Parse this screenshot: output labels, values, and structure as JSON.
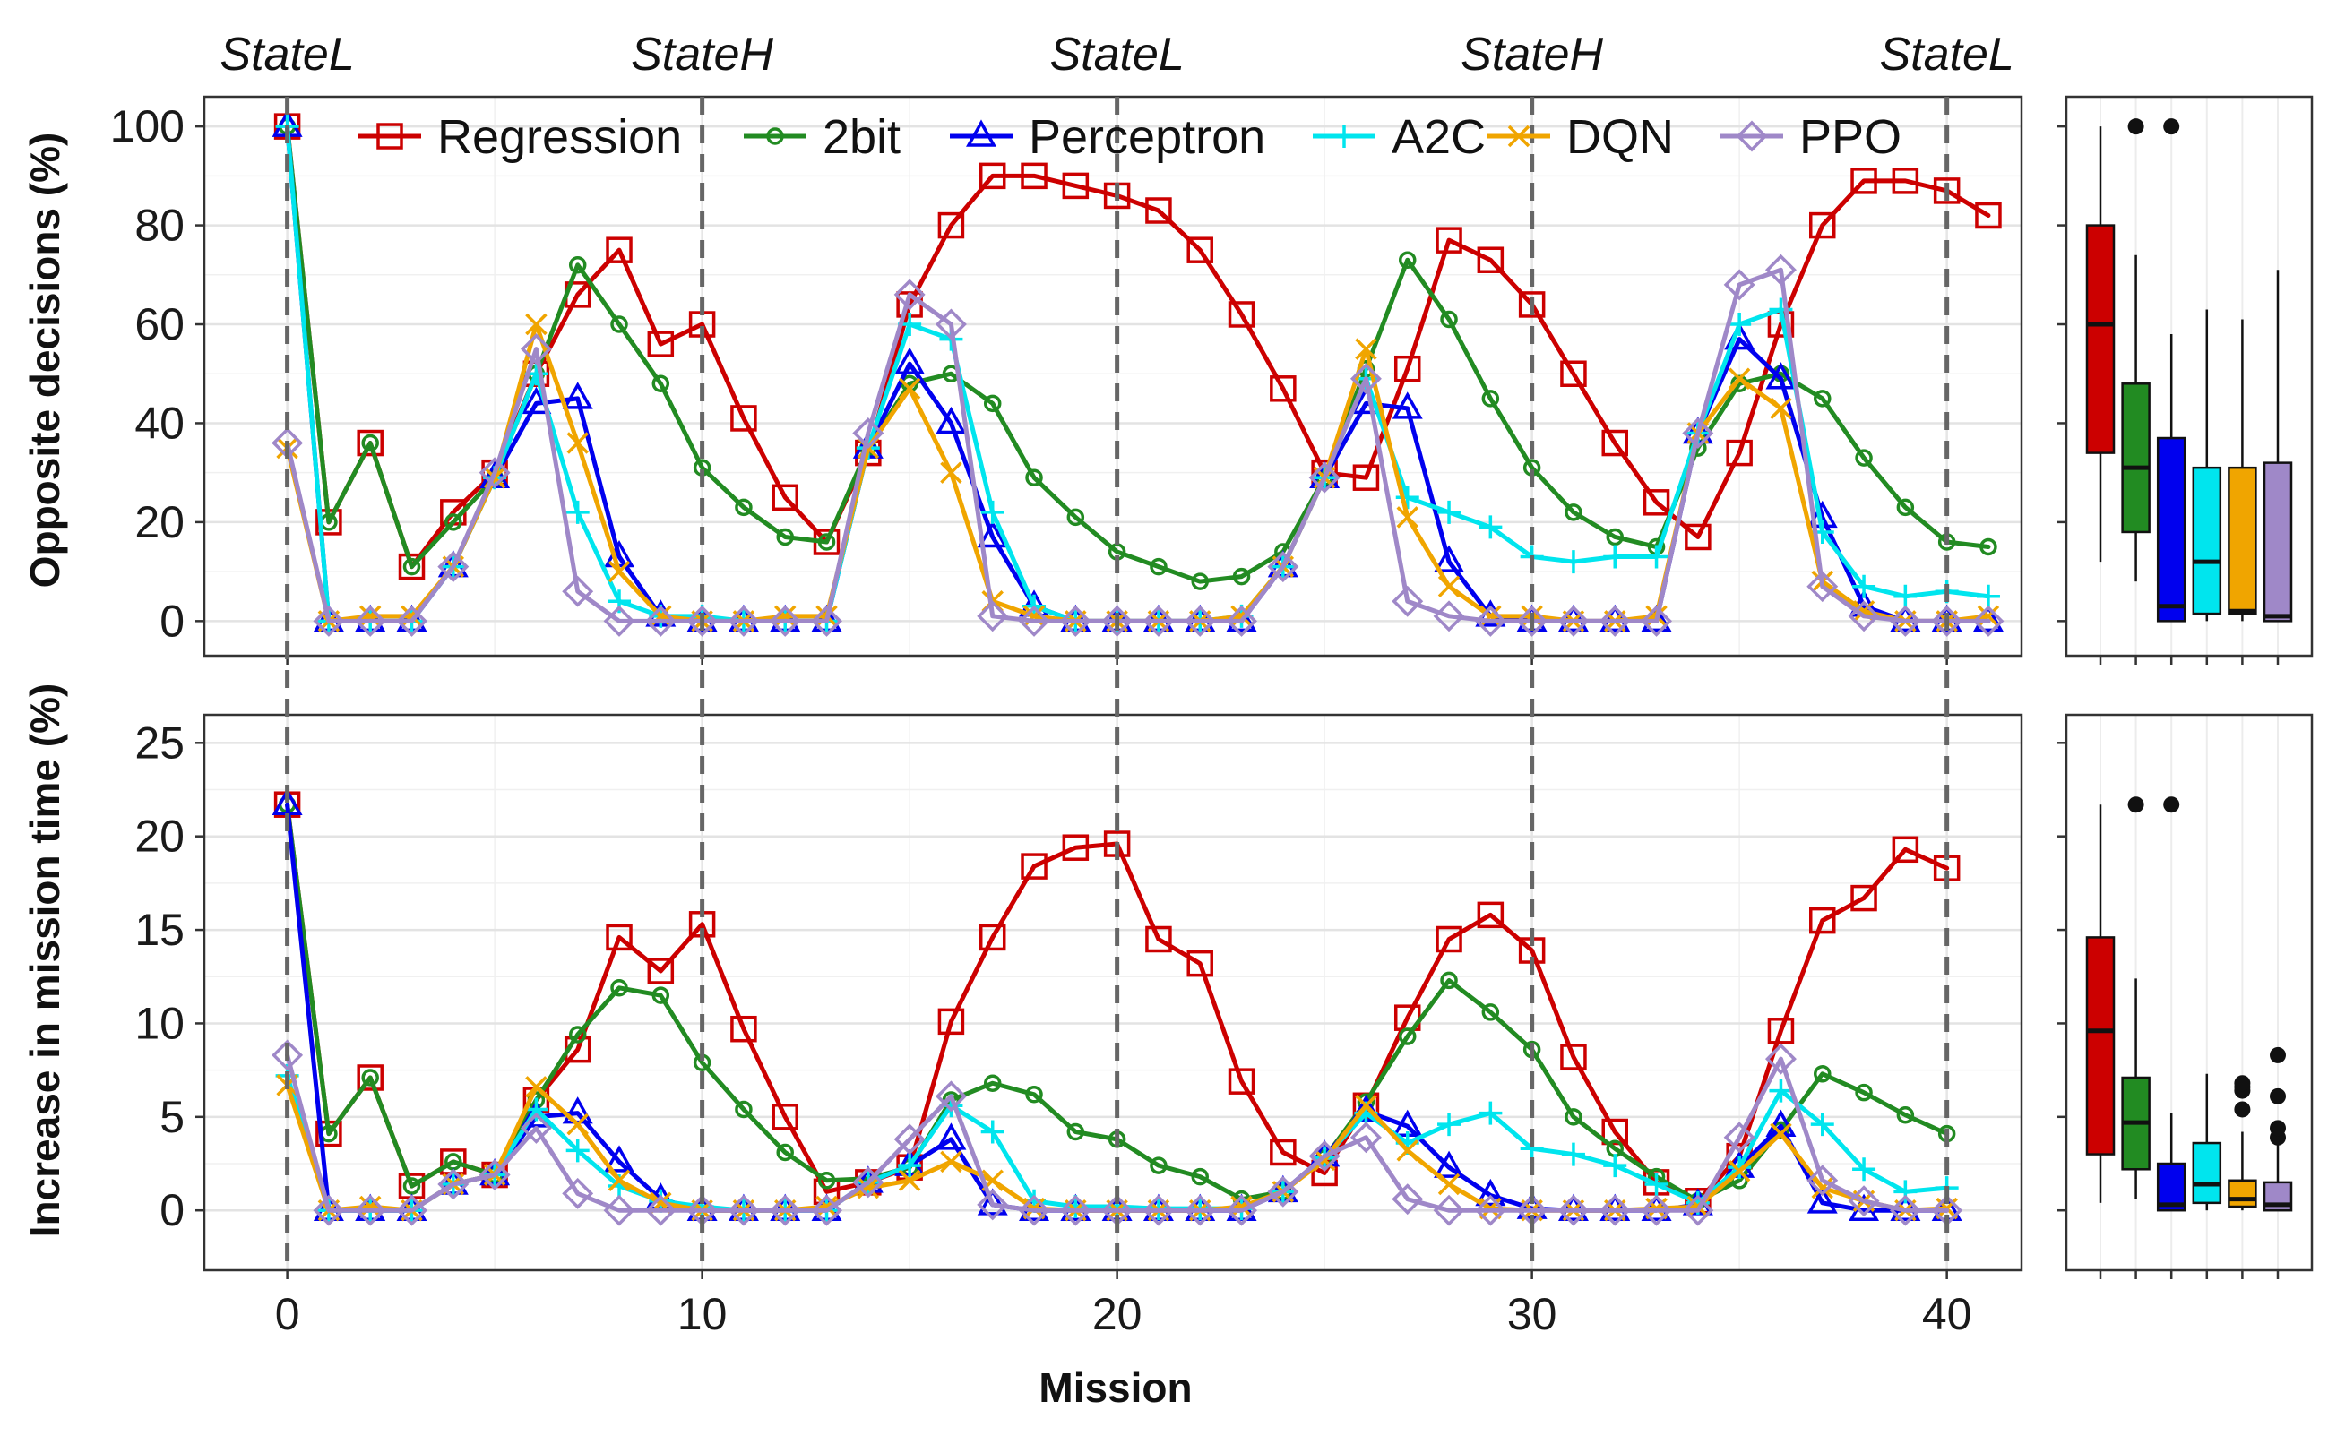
{
  "colors": {
    "Regression": "#cc0000",
    "2bit": "#228b22",
    "Perceptron": "#0000ee",
    "A2C": "#00e5ee",
    "DQN": "#f0a500",
    "PPO": "#9f88c8",
    "vline": "#666666"
  },
  "markers": {
    "Regression": "square-open",
    "2bit": "circle-open",
    "Perceptron": "triangle-open",
    "A2C": "plus",
    "DQN": "cross",
    "PPO": "diamond-open"
  },
  "chart_data": [
    {
      "type": "line",
      "id": "top",
      "xlabel": "",
      "ylabel": "Opposite decisions (%)",
      "xlim": [
        -2,
        41.8
      ],
      "ylim": [
        -7,
        106
      ],
      "yticks": [
        0,
        20,
        40,
        60,
        80,
        100
      ],
      "grid": true,
      "legend_position": "top",
      "state_lines": [
        0,
        10,
        20,
        30,
        40
      ],
      "state_labels": [
        {
          "x": 0,
          "label": "StateL"
        },
        {
          "x": 10,
          "label": "StateH"
        },
        {
          "x": 20,
          "label": "StateL"
        },
        {
          "x": 30,
          "label": "StateH"
        },
        {
          "x": 40,
          "label": "StateL"
        }
      ],
      "series": [
        {
          "name": "Regression",
          "values": [
            100,
            20,
            36,
            11,
            22,
            30,
            50,
            66,
            75,
            56,
            60,
            41,
            25,
            16,
            34,
            64,
            80,
            90,
            90,
            88,
            86,
            83,
            75,
            62,
            47,
            30,
            29,
            51,
            77,
            73,
            64,
            50,
            36,
            24,
            17,
            34,
            60,
            80,
            89,
            89,
            87,
            82
          ]
        },
        {
          "name": "2bit",
          "values": [
            100,
            20,
            36,
            11,
            20,
            29,
            50,
            72,
            60,
            48,
            31,
            23,
            17,
            16,
            35,
            48,
            50,
            44,
            29,
            21,
            14,
            11,
            8,
            9,
            14,
            29,
            51,
            73,
            61,
            45,
            31,
            22,
            17,
            15,
            35,
            48,
            50,
            45,
            33,
            23,
            16,
            15
          ]
        },
        {
          "name": "Perceptron",
          "values": [
            100,
            0,
            0,
            0,
            11,
            29,
            44,
            45,
            13,
            1,
            0,
            0,
            0,
            0,
            35,
            52,
            40,
            17,
            3,
            0,
            0,
            0,
            0,
            0,
            11,
            29,
            44,
            43,
            12,
            1,
            0,
            0,
            0,
            0,
            38,
            57,
            49,
            21,
            3,
            0,
            0,
            0
          ]
        },
        {
          "name": "A2C",
          "values": [
            100,
            0,
            0,
            0,
            11,
            29,
            50,
            22,
            4,
            1,
            1,
            0,
            0,
            0,
            35,
            60,
            57,
            22,
            3,
            0,
            0,
            0,
            0,
            1,
            11,
            29,
            49,
            25,
            22,
            19,
            13,
            12,
            13,
            13,
            38,
            60,
            63,
            18,
            7,
            5,
            6,
            5
          ]
        },
        {
          "name": "DQN",
          "values": [
            35,
            0,
            1,
            1,
            11,
            29,
            60,
            36,
            10,
            1,
            0,
            0,
            1,
            1,
            35,
            47,
            30,
            4,
            1,
            0,
            0,
            0,
            0,
            1,
            11,
            29,
            55,
            21,
            7,
            1,
            1,
            0,
            0,
            1,
            38,
            49,
            43,
            8,
            2,
            0,
            0,
            1
          ]
        },
        {
          "name": "PPO",
          "values": [
            36,
            0,
            0,
            0,
            11,
            30,
            55,
            6,
            0,
            0,
            0,
            0,
            0,
            0,
            38,
            66,
            60,
            1,
            0,
            0,
            0,
            0,
            0,
            0,
            11,
            29,
            49,
            4,
            1,
            0,
            0,
            0,
            0,
            0,
            38,
            68,
            71,
            7,
            1,
            0,
            0,
            0
          ]
        }
      ]
    },
    {
      "type": "line",
      "id": "bottom",
      "xlabel": "Mission",
      "ylabel": "Increase in mission time (%)",
      "xlim": [
        -2,
        41.8
      ],
      "ylim": [
        -3.2,
        26.5
      ],
      "xticks": [
        0,
        10,
        20,
        30,
        40
      ],
      "yticks": [
        0,
        5,
        10,
        15,
        20,
        25
      ],
      "grid": true,
      "state_lines": [
        0,
        10,
        20,
        30,
        40
      ],
      "series": [
        {
          "name": "Regression",
          "values": [
            21.7,
            4.1,
            7.1,
            1.3,
            2.6,
            1.9,
            5.9,
            8.6,
            14.6,
            12.8,
            15.3,
            9.7,
            5.0,
            1.0,
            1.5,
            2.3,
            10.1,
            14.6,
            18.4,
            19.4,
            19.6,
            14.5,
            13.2,
            6.9,
            3.1,
            2.0,
            5.6,
            10.3,
            14.5,
            15.8,
            13.9,
            8.2,
            4.2,
            1.5,
            0.5,
            2.9,
            9.6,
            15.5,
            16.7,
            19.3,
            18.3
          ]
        },
        {
          "name": "2bit",
          "values": [
            21.7,
            4.1,
            7.1,
            1.3,
            2.6,
            1.9,
            5.9,
            9.4,
            11.9,
            11.5,
            7.9,
            5.4,
            3.1,
            1.6,
            1.7,
            2.3,
            5.9,
            6.8,
            6.2,
            4.2,
            3.8,
            2.4,
            1.8,
            0.6,
            1.0,
            2.8,
            5.8,
            9.3,
            12.3,
            10.6,
            8.6,
            5.0,
            3.3,
            1.8,
            0.5,
            1.6,
            4.3,
            7.3,
            6.3,
            5.1,
            4.1
          ]
        },
        {
          "name": "Perceptron",
          "values": [
            21.7,
            0,
            0,
            0,
            1.4,
            1.9,
            5.0,
            5.2,
            2.6,
            0.6,
            0,
            0,
            0,
            0,
            1.5,
            2.4,
            3.8,
            0.3,
            0,
            0,
            0,
            0,
            0,
            0,
            1.0,
            2.9,
            5.3,
            4.5,
            2.3,
            0.8,
            0.1,
            0,
            0,
            0,
            0.3,
            2.3,
            4.5,
            0.4,
            0,
            0,
            0
          ]
        },
        {
          "name": "A2C",
          "values": [
            7.2,
            0,
            0,
            0,
            1.4,
            1.9,
            5.4,
            3.2,
            1.3,
            0.5,
            0.2,
            0,
            0,
            0,
            1.5,
            2.4,
            5.6,
            4.2,
            0.5,
            0.2,
            0.2,
            0.1,
            0.1,
            0.1,
            1.0,
            2.8,
            5.2,
            3.6,
            4.6,
            5.2,
            3.3,
            3.0,
            2.4,
            1.4,
            0.4,
            2.3,
            6.4,
            4.6,
            2.2,
            1.0,
            1.2
          ]
        },
        {
          "name": "DQN",
          "values": [
            6.7,
            0,
            0.2,
            0,
            1.4,
            1.9,
            6.6,
            4.6,
            1.6,
            0.4,
            0,
            0,
            0,
            0.2,
            1.2,
            1.6,
            2.6,
            1.6,
            0.1,
            0,
            0,
            0,
            0,
            0.2,
            1.0,
            2.7,
            5.6,
            3.2,
            1.4,
            0.1,
            0,
            0,
            0,
            0.1,
            0.2,
            2.1,
            4.1,
            1.2,
            0.5,
            0,
            0.1
          ]
        },
        {
          "name": "PPO",
          "values": [
            8.3,
            0,
            0,
            0,
            1.4,
            1.9,
            4.4,
            0.9,
            0,
            0,
            0,
            0,
            0,
            0,
            1.5,
            3.8,
            6.1,
            0.3,
            0,
            0,
            0,
            0,
            0,
            0,
            1.0,
            2.9,
            3.9,
            0.6,
            0,
            0,
            0,
            0,
            0,
            0,
            0,
            3.9,
            8.1,
            1.6,
            0.5,
            0,
            0
          ]
        }
      ]
    },
    {
      "type": "box",
      "id": "top-box",
      "ylim": [
        -7,
        106
      ],
      "boxes": [
        {
          "name": "Regression",
          "whisker_low": 12,
          "q1": 34,
          "median": 60,
          "q3": 80,
          "whisker_high": 100,
          "outliers": []
        },
        {
          "name": "2bit",
          "whisker_low": 8,
          "q1": 18,
          "median": 31,
          "q3": 48,
          "whisker_high": 74,
          "outliers": [
            100
          ]
        },
        {
          "name": "Perceptron",
          "whisker_low": 0,
          "q1": 0,
          "median": 3,
          "q3": 37,
          "whisker_high": 58,
          "outliers": [
            100
          ]
        },
        {
          "name": "A2C",
          "whisker_low": 0,
          "q1": 1.5,
          "median": 12,
          "q3": 31,
          "whisker_high": 63,
          "outliers": []
        },
        {
          "name": "DQN",
          "whisker_low": 0,
          "q1": 1.5,
          "median": 2,
          "q3": 31,
          "whisker_high": 61,
          "outliers": []
        },
        {
          "name": "PPO",
          "whisker_low": 0,
          "q1": 0,
          "median": 1,
          "q3": 32,
          "whisker_high": 71,
          "outliers": []
        }
      ]
    },
    {
      "type": "box",
      "id": "bottom-box",
      "ylim": [
        -3.2,
        26.5
      ],
      "boxes": [
        {
          "name": "Regression",
          "whisker_low": 0.4,
          "q1": 3.0,
          "median": 9.6,
          "q3": 14.6,
          "whisker_high": 21.7,
          "outliers": []
        },
        {
          "name": "2bit",
          "whisker_low": 0.6,
          "q1": 2.2,
          "median": 4.7,
          "q3": 7.1,
          "whisker_high": 12.4,
          "outliers": [
            21.7
          ]
        },
        {
          "name": "Perceptron",
          "whisker_low": 0,
          "q1": 0,
          "median": 0.3,
          "q3": 2.5,
          "whisker_high": 5.2,
          "outliers": [
            21.7
          ]
        },
        {
          "name": "A2C",
          "whisker_low": 0,
          "q1": 0.4,
          "median": 1.4,
          "q3": 3.6,
          "whisker_high": 7.3,
          "outliers": []
        },
        {
          "name": "DQN",
          "whisker_low": 0,
          "q1": 0.2,
          "median": 0.6,
          "q3": 1.6,
          "whisker_high": 4.2,
          "outliers": [
            5.4,
            6.4,
            6.6,
            6.8
          ]
        },
        {
          "name": "PPO",
          "whisker_low": 0,
          "q1": 0,
          "median": 0.3,
          "q3": 1.5,
          "whisker_high": 3.8,
          "outliers": [
            3.9,
            4.4,
            6.1,
            8.3
          ]
        }
      ]
    }
  ]
}
